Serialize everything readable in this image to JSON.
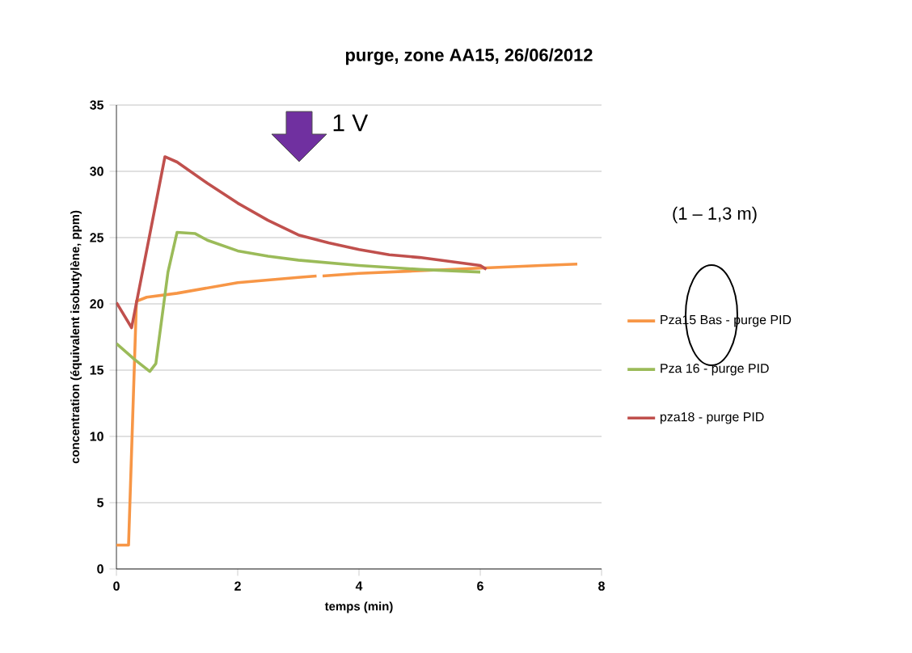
{
  "chart_data": {
    "type": "line",
    "title": "purge, zone AA15, 26/06/2012",
    "xlabel": "temps (min)",
    "ylabel": "concentration (équivalent isobutylène, ppm)",
    "xlim": [
      0,
      8
    ],
    "xticks": [
      0,
      2,
      4,
      6,
      8
    ],
    "ylim": [
      0,
      35
    ],
    "yticks": [
      0,
      5,
      10,
      15,
      20,
      25,
      30,
      35
    ],
    "grid": "y",
    "legend": "right",
    "marker": "none",
    "line_style": "solid",
    "annotations": [
      "1 V",
      "(1 – 1,3 m)"
    ],
    "series": [
      {
        "name": "Pza15 Bas - purge PID",
        "color": "#f79646",
        "x": [
          0,
          0.2,
          0.33,
          0.5,
          1,
          2,
          3,
          3.3,
          3.35,
          3.4,
          4,
          5,
          6,
          7,
          7.6
        ],
        "values": [
          1.8,
          1.8,
          20.2,
          20.5,
          20.8,
          21.6,
          22.0,
          22.1,
          null,
          22.1,
          22.3,
          22.5,
          22.7,
          22.9,
          23.0
        ]
      },
      {
        "name": "Pza 16 - purge PID",
        "color": "#9bbb59",
        "x": [
          0,
          0.3,
          0.55,
          0.65,
          0.85,
          1,
          1.3,
          1.5,
          2,
          2.5,
          3,
          4,
          5,
          6
        ],
        "values": [
          17.0,
          15.8,
          14.9,
          15.5,
          22.4,
          25.4,
          25.3,
          24.8,
          24.0,
          23.6,
          23.3,
          22.9,
          22.6,
          22.4
        ]
      },
      {
        "name": "pza18 - purge PID",
        "color": "#c0504d",
        "x": [
          0,
          0.25,
          0.8,
          1,
          1.5,
          2,
          2.5,
          3,
          3.5,
          4,
          4.5,
          5,
          5.5,
          6,
          6.1
        ],
        "values": [
          20.1,
          18.2,
          31.1,
          30.7,
          29.1,
          27.6,
          26.3,
          25.2,
          24.6,
          24.1,
          23.7,
          23.5,
          23.2,
          22.9,
          22.6
        ]
      }
    ]
  }
}
